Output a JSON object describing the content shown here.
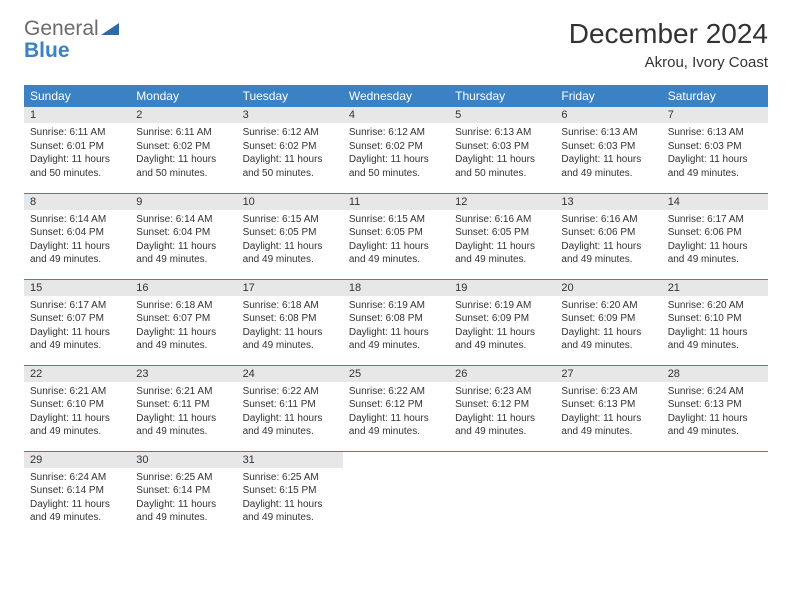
{
  "brand": {
    "part1": "General",
    "part2": "Blue"
  },
  "title": "December 2024",
  "location": "Akrou, Ivory Coast",
  "colors": {
    "header_bg": "#3a82c4",
    "header_text": "#ffffff",
    "daynum_bg": "#e7e7e7",
    "border": "#3a82c4",
    "text": "#333333",
    "logo_gray": "#6b6b6b",
    "logo_blue": "#3a82c4",
    "page_bg": "#ffffff"
  },
  "typography": {
    "title_fontsize_pt": 21,
    "location_fontsize_pt": 11,
    "dayheader_fontsize_pt": 9,
    "cell_fontsize_pt": 7.5
  },
  "day_headers": [
    "Sunday",
    "Monday",
    "Tuesday",
    "Wednesday",
    "Thursday",
    "Friday",
    "Saturday"
  ],
  "weeks": [
    [
      {
        "n": "1",
        "sr": "Sunrise: 6:11 AM",
        "ss": "Sunset: 6:01 PM",
        "d1": "Daylight: 11 hours",
        "d2": "and 50 minutes."
      },
      {
        "n": "2",
        "sr": "Sunrise: 6:11 AM",
        "ss": "Sunset: 6:02 PM",
        "d1": "Daylight: 11 hours",
        "d2": "and 50 minutes."
      },
      {
        "n": "3",
        "sr": "Sunrise: 6:12 AM",
        "ss": "Sunset: 6:02 PM",
        "d1": "Daylight: 11 hours",
        "d2": "and 50 minutes."
      },
      {
        "n": "4",
        "sr": "Sunrise: 6:12 AM",
        "ss": "Sunset: 6:02 PM",
        "d1": "Daylight: 11 hours",
        "d2": "and 50 minutes."
      },
      {
        "n": "5",
        "sr": "Sunrise: 6:13 AM",
        "ss": "Sunset: 6:03 PM",
        "d1": "Daylight: 11 hours",
        "d2": "and 50 minutes."
      },
      {
        "n": "6",
        "sr": "Sunrise: 6:13 AM",
        "ss": "Sunset: 6:03 PM",
        "d1": "Daylight: 11 hours",
        "d2": "and 49 minutes."
      },
      {
        "n": "7",
        "sr": "Sunrise: 6:13 AM",
        "ss": "Sunset: 6:03 PM",
        "d1": "Daylight: 11 hours",
        "d2": "and 49 minutes."
      }
    ],
    [
      {
        "n": "8",
        "sr": "Sunrise: 6:14 AM",
        "ss": "Sunset: 6:04 PM",
        "d1": "Daylight: 11 hours",
        "d2": "and 49 minutes."
      },
      {
        "n": "9",
        "sr": "Sunrise: 6:14 AM",
        "ss": "Sunset: 6:04 PM",
        "d1": "Daylight: 11 hours",
        "d2": "and 49 minutes."
      },
      {
        "n": "10",
        "sr": "Sunrise: 6:15 AM",
        "ss": "Sunset: 6:05 PM",
        "d1": "Daylight: 11 hours",
        "d2": "and 49 minutes."
      },
      {
        "n": "11",
        "sr": "Sunrise: 6:15 AM",
        "ss": "Sunset: 6:05 PM",
        "d1": "Daylight: 11 hours",
        "d2": "and 49 minutes."
      },
      {
        "n": "12",
        "sr": "Sunrise: 6:16 AM",
        "ss": "Sunset: 6:05 PM",
        "d1": "Daylight: 11 hours",
        "d2": "and 49 minutes."
      },
      {
        "n": "13",
        "sr": "Sunrise: 6:16 AM",
        "ss": "Sunset: 6:06 PM",
        "d1": "Daylight: 11 hours",
        "d2": "and 49 minutes."
      },
      {
        "n": "14",
        "sr": "Sunrise: 6:17 AM",
        "ss": "Sunset: 6:06 PM",
        "d1": "Daylight: 11 hours",
        "d2": "and 49 minutes."
      }
    ],
    [
      {
        "n": "15",
        "sr": "Sunrise: 6:17 AM",
        "ss": "Sunset: 6:07 PM",
        "d1": "Daylight: 11 hours",
        "d2": "and 49 minutes."
      },
      {
        "n": "16",
        "sr": "Sunrise: 6:18 AM",
        "ss": "Sunset: 6:07 PM",
        "d1": "Daylight: 11 hours",
        "d2": "and 49 minutes."
      },
      {
        "n": "17",
        "sr": "Sunrise: 6:18 AM",
        "ss": "Sunset: 6:08 PM",
        "d1": "Daylight: 11 hours",
        "d2": "and 49 minutes."
      },
      {
        "n": "18",
        "sr": "Sunrise: 6:19 AM",
        "ss": "Sunset: 6:08 PM",
        "d1": "Daylight: 11 hours",
        "d2": "and 49 minutes."
      },
      {
        "n": "19",
        "sr": "Sunrise: 6:19 AM",
        "ss": "Sunset: 6:09 PM",
        "d1": "Daylight: 11 hours",
        "d2": "and 49 minutes."
      },
      {
        "n": "20",
        "sr": "Sunrise: 6:20 AM",
        "ss": "Sunset: 6:09 PM",
        "d1": "Daylight: 11 hours",
        "d2": "and 49 minutes."
      },
      {
        "n": "21",
        "sr": "Sunrise: 6:20 AM",
        "ss": "Sunset: 6:10 PM",
        "d1": "Daylight: 11 hours",
        "d2": "and 49 minutes."
      }
    ],
    [
      {
        "n": "22",
        "sr": "Sunrise: 6:21 AM",
        "ss": "Sunset: 6:10 PM",
        "d1": "Daylight: 11 hours",
        "d2": "and 49 minutes."
      },
      {
        "n": "23",
        "sr": "Sunrise: 6:21 AM",
        "ss": "Sunset: 6:11 PM",
        "d1": "Daylight: 11 hours",
        "d2": "and 49 minutes."
      },
      {
        "n": "24",
        "sr": "Sunrise: 6:22 AM",
        "ss": "Sunset: 6:11 PM",
        "d1": "Daylight: 11 hours",
        "d2": "and 49 minutes."
      },
      {
        "n": "25",
        "sr": "Sunrise: 6:22 AM",
        "ss": "Sunset: 6:12 PM",
        "d1": "Daylight: 11 hours",
        "d2": "and 49 minutes."
      },
      {
        "n": "26",
        "sr": "Sunrise: 6:23 AM",
        "ss": "Sunset: 6:12 PM",
        "d1": "Daylight: 11 hours",
        "d2": "and 49 minutes."
      },
      {
        "n": "27",
        "sr": "Sunrise: 6:23 AM",
        "ss": "Sunset: 6:13 PM",
        "d1": "Daylight: 11 hours",
        "d2": "and 49 minutes."
      },
      {
        "n": "28",
        "sr": "Sunrise: 6:24 AM",
        "ss": "Sunset: 6:13 PM",
        "d1": "Daylight: 11 hours",
        "d2": "and 49 minutes."
      }
    ],
    [
      {
        "n": "29",
        "sr": "Sunrise: 6:24 AM",
        "ss": "Sunset: 6:14 PM",
        "d1": "Daylight: 11 hours",
        "d2": "and 49 minutes."
      },
      {
        "n": "30",
        "sr": "Sunrise: 6:25 AM",
        "ss": "Sunset: 6:14 PM",
        "d1": "Daylight: 11 hours",
        "d2": "and 49 minutes."
      },
      {
        "n": "31",
        "sr": "Sunrise: 6:25 AM",
        "ss": "Sunset: 6:15 PM",
        "d1": "Daylight: 11 hours",
        "d2": "and 49 minutes."
      },
      {
        "empty": true
      },
      {
        "empty": true
      },
      {
        "empty": true
      },
      {
        "empty": true
      }
    ]
  ]
}
